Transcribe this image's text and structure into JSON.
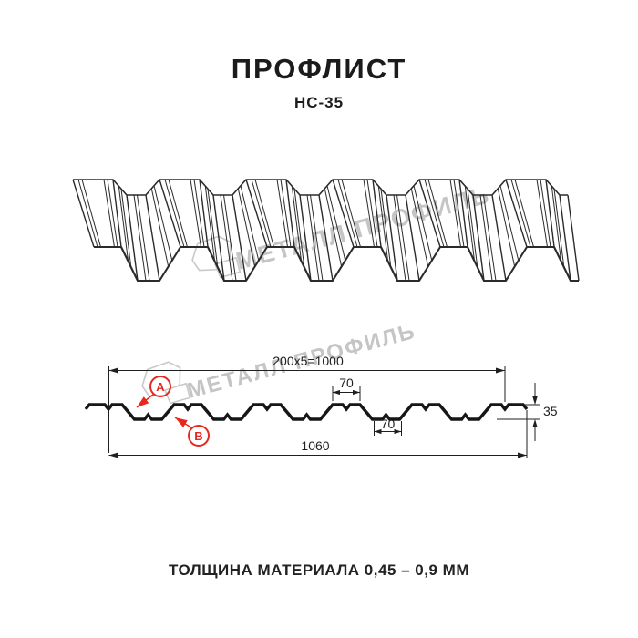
{
  "page": {
    "title": "ПРОФЛИСТ",
    "subtitle": "НС-35",
    "footer": "ТОЛЩИНА МАТЕРИАЛА 0,45 – 0,9 ММ"
  },
  "watermark": {
    "text": "МЕТАЛЛ ПРОФИЛЬ"
  },
  "diagram": {
    "dim_module": "200x5=1000",
    "dim_crest_width": "70",
    "dim_valley_width": "70",
    "dim_overall_width": "1060",
    "dim_height": "35",
    "marker_a": "A",
    "marker_b": "B"
  },
  "colors": {
    "line": "#1f1f1f",
    "accent_red": "#e8281e",
    "watermark_gray": "#c5c5c5"
  }
}
